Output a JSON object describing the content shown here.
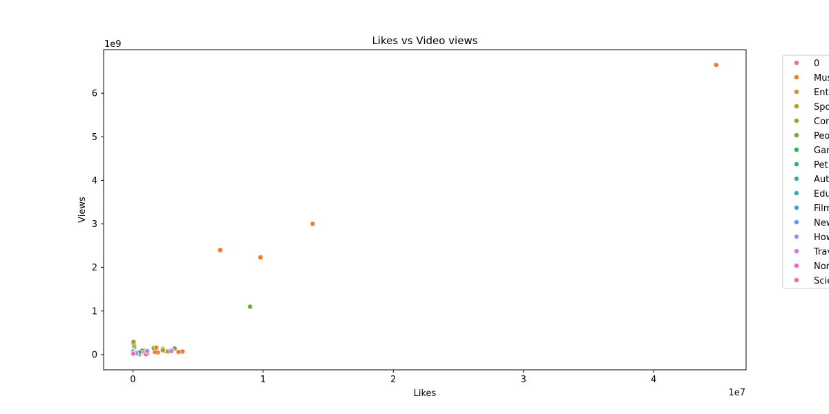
{
  "chart_data": {
    "type": "scatter",
    "title": "Likes vs Video views",
    "xlabel": "Likes",
    "ylabel": "Views",
    "x_offset_label": "1e7",
    "y_offset_label": "1e9",
    "xlim": [
      -2250000,
      47100000
    ],
    "ylim": [
      -350000000,
      7000000000
    ],
    "x_ticks": [
      0,
      10000000,
      20000000,
      30000000,
      40000000
    ],
    "x_tick_labels": [
      "0",
      "1",
      "2",
      "3",
      "4"
    ],
    "y_ticks": [
      0,
      1000000000,
      2000000000,
      3000000000,
      4000000000,
      5000000000,
      6000000000
    ],
    "y_tick_labels": [
      "0",
      "1",
      "2",
      "3",
      "4",
      "5",
      "6"
    ],
    "grid": false,
    "legend_position": "outside right",
    "legend": [
      {
        "label": "0",
        "color": "#f77189"
      },
      {
        "label": "Mus",
        "color": "#f37932"
      },
      {
        "label": "Ent",
        "color": "#d58c32"
      },
      {
        "label": "Spo",
        "color": "#bb9832"
      },
      {
        "label": "Con",
        "color": "#a4a031"
      },
      {
        "label": "Peo",
        "color": "#6fac31"
      },
      {
        "label": "Gan",
        "color": "#34ae5b"
      },
      {
        "label": "Pet",
        "color": "#36ad91"
      },
      {
        "label": "Aut",
        "color": "#37aaa8"
      },
      {
        "label": "Edu",
        "color": "#39a7ba"
      },
      {
        "label": "Film",
        "color": "#3ba3d1"
      },
      {
        "label": "New",
        "color": "#5b9bf3"
      },
      {
        "label": "How",
        "color": "#9c8ff4"
      },
      {
        "label": "Trav",
        "color": "#d676f4"
      },
      {
        "label": "Non",
        "color": "#f563d3"
      },
      {
        "label": "Scie",
        "color": "#f66aae"
      }
    ],
    "series": [
      {
        "category": "Mus",
        "points": [
          [
            44800000,
            6650000000
          ],
          [
            13800000,
            3000000000
          ],
          [
            6700000,
            2400000000
          ],
          [
            9800000,
            2230000000
          ],
          [
            3800000,
            70000000
          ],
          [
            3500000,
            60000000
          ],
          [
            1900000,
            50000000
          ],
          [
            1700000,
            60000000
          ],
          [
            1100000,
            20000000
          ],
          [
            500000,
            10000000
          ],
          [
            200000,
            30000000
          ]
        ]
      },
      {
        "category": "Peo",
        "points": [
          [
            9000000,
            1100000000
          ],
          [
            1600000,
            150000000
          ],
          [
            3200000,
            140000000
          ],
          [
            800000,
            100000000
          ],
          [
            2900000,
            90000000
          ],
          [
            700000,
            90000000
          ]
        ]
      },
      {
        "category": "Ent",
        "points": [
          [
            2300000,
            130000000
          ],
          [
            1800000,
            160000000
          ],
          [
            2500000,
            80000000
          ],
          [
            100000,
            140000000
          ],
          [
            900000,
            50000000
          ],
          [
            300000,
            60000000
          ]
        ]
      },
      {
        "category": "Spo",
        "points": [
          [
            50000,
            280000000
          ],
          [
            100000,
            200000000
          ],
          [
            2700000,
            70000000
          ]
        ]
      },
      {
        "category": "Con",
        "points": [
          [
            60000,
            250000000
          ],
          [
            50000,
            290000000
          ],
          [
            2300000,
            100000000
          ]
        ]
      },
      {
        "category": "0",
        "points": [
          [
            300000,
            20000000
          ],
          [
            1000000,
            10000000
          ],
          [
            20000,
            30000000
          ]
        ]
      },
      {
        "category": "Gan",
        "points": [
          [
            3000000,
            90000000
          ],
          [
            400000,
            50000000
          ]
        ]
      },
      {
        "category": "Pet",
        "points": [
          [
            100000,
            60000000
          ]
        ]
      },
      {
        "category": "Aut",
        "points": [
          [
            60000,
            80000000
          ]
        ]
      },
      {
        "category": "Edu",
        "points": [
          [
            150000,
            40000000
          ],
          [
            20000,
            70000000
          ]
        ]
      },
      {
        "category": "Film",
        "points": [
          [
            80000,
            30000000
          ],
          [
            500000,
            50000000
          ]
        ]
      },
      {
        "category": "New",
        "points": [
          [
            20000,
            5000000
          ],
          [
            40000,
            15000000
          ]
        ]
      },
      {
        "category": "How",
        "points": [
          [
            1100000,
            80000000
          ],
          [
            250000,
            30000000
          ]
        ]
      },
      {
        "category": "Trav",
        "points": [
          [
            2950000,
            80000000
          ]
        ]
      },
      {
        "category": "Non",
        "points": [
          [
            40000,
            25000000
          ]
        ]
      },
      {
        "category": "Scie",
        "points": [
          [
            30000,
            20000000
          ]
        ]
      }
    ]
  }
}
